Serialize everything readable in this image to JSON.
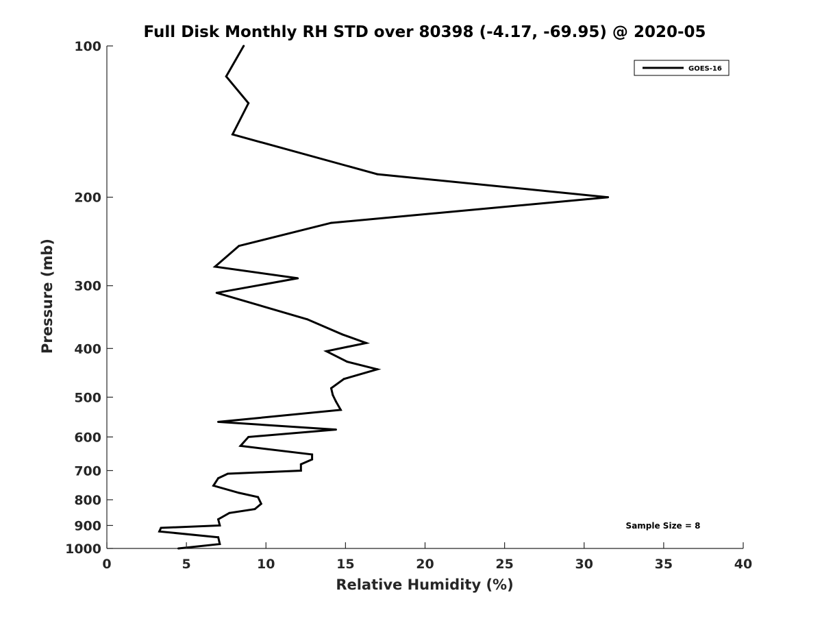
{
  "chart_data": {
    "type": "line",
    "title": "Full Disk Monthly RH STD over 80398 (-4.17, -69.95) @ 2020-05",
    "xlabel": "Relative Humidity (%)",
    "ylabel": "Pressure (mb)",
    "xlim": [
      0,
      40
    ],
    "ylim": [
      1000,
      100
    ],
    "y_scale": "log",
    "y_reversed": true,
    "x_ticks": [
      0,
      5,
      10,
      15,
      20,
      25,
      30,
      35,
      40
    ],
    "x_tick_labels": [
      "0",
      "5",
      "10",
      "15",
      "20",
      "25",
      "30",
      "35",
      "40"
    ],
    "y_ticks": [
      100,
      200,
      300,
      400,
      500,
      600,
      700,
      800,
      900,
      1000
    ],
    "y_tick_labels": [
      "100",
      "200",
      "300",
      "400",
      "500",
      "600",
      "700",
      "800",
      "900",
      "1000"
    ],
    "grid": false,
    "legend_position": "top-right",
    "series": [
      {
        "name": "GOES-16",
        "color": "#000000",
        "x": [
          8.6,
          7.5,
          8.9,
          7.9,
          17.0,
          31.5,
          14.1,
          8.3,
          6.8,
          12.0,
          6.9,
          12.6,
          14.8,
          16.3,
          13.8,
          15.1,
          17.0,
          14.9,
          14.1,
          14.2,
          14.4,
          14.7,
          7.0,
          14.4,
          8.9,
          8.4,
          12.9,
          12.9,
          12.2,
          12.2,
          7.6,
          7.0,
          6.7,
          8.3,
          9.5,
          9.7,
          9.3,
          7.7,
          7.0,
          7.1,
          3.4,
          3.3,
          7.0,
          7.1,
          4.5
        ],
        "y": [
          100,
          115,
          130,
          150,
          180,
          200,
          225,
          250,
          275,
          290,
          310,
          350,
          375,
          390,
          405,
          425,
          440,
          460,
          480,
          495,
          510,
          530,
          560,
          580,
          600,
          625,
          650,
          665,
          680,
          700,
          710,
          725,
          750,
          775,
          790,
          815,
          835,
          850,
          875,
          900,
          910,
          925,
          950,
          980,
          1000
        ]
      }
    ],
    "annotations": [
      "Sample Size = 8"
    ]
  }
}
